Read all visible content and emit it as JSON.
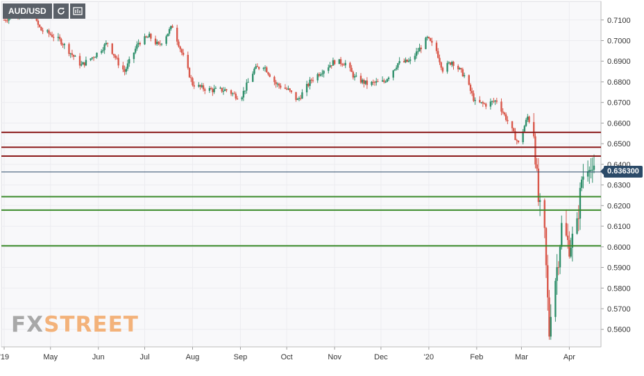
{
  "toolbar": {
    "symbol": "AUD/USD",
    "refresh_icon": "refresh-icon",
    "indicator_icon": "indicator-icon"
  },
  "logo": {
    "fx": "FX",
    "street": "STREET"
  },
  "colors": {
    "bull": "#2f8f6b",
    "bear": "#d9574a",
    "resistance": "#8b1a1a",
    "support": "#3a8a2a",
    "current_line": "#2b4a68",
    "grid": "#ececf0",
    "axis_text": "#333333"
  },
  "chart_data": {
    "type": "candlestick",
    "symbol": "AUD/USD",
    "ylim": [
      0.5515,
      0.719
    ],
    "y_ticks": [
      "0.7100",
      "0.7000",
      "0.6900",
      "0.6800",
      "0.6700",
      "0.6600",
      "0.6500",
      "0.6400",
      "0.6300",
      "0.6200",
      "0.6100",
      "0.6000",
      "0.5900",
      "0.5800",
      "0.5700",
      "0.5600"
    ],
    "x_ticks": [
      {
        "label": "'19",
        "date": "2019-04-01"
      },
      {
        "label": "May",
        "date": "2019-05-01"
      },
      {
        "label": "Jun",
        "date": "2019-06-01"
      },
      {
        "label": "Jul",
        "date": "2019-07-01"
      },
      {
        "label": "Aug",
        "date": "2019-08-01"
      },
      {
        "label": "Sep",
        "date": "2019-09-01"
      },
      {
        "label": "Oct",
        "date": "2019-10-01"
      },
      {
        "label": "Nov",
        "date": "2019-11-01"
      },
      {
        "label": "Dec",
        "date": "2019-12-01"
      },
      {
        "label": "'20",
        "date": "2020-01-01"
      },
      {
        "label": "Feb",
        "date": "2020-02-01"
      },
      {
        "label": "Mar",
        "date": "2020-03-01"
      },
      {
        "label": "Apr",
        "date": "2020-04-01"
      }
    ],
    "date_range": [
      "2019-04-01",
      "2020-04-17"
    ],
    "current_price": {
      "value": 0.6363,
      "label": "0.636300"
    },
    "resistance_levels": [
      0.6555,
      0.6483,
      0.644
    ],
    "support_levels": [
      0.6243,
      0.6178,
      0.6005
    ],
    "close_path": [
      [
        "2019-04-01",
        0.71
      ],
      [
        "2019-04-08",
        0.713
      ],
      [
        "2019-04-17",
        0.7145
      ],
      [
        "2019-04-25",
        0.705
      ],
      [
        "2019-05-01",
        0.703
      ],
      [
        "2019-05-08",
        0.6995
      ],
      [
        "2019-05-14",
        0.694
      ],
      [
        "2019-05-21",
        0.688
      ],
      [
        "2019-05-30",
        0.693
      ],
      [
        "2019-06-07",
        0.699
      ],
      [
        "2019-06-14",
        0.689
      ],
      [
        "2019-06-18",
        0.685
      ],
      [
        "2019-06-27",
        0.699
      ],
      [
        "2019-07-04",
        0.702
      ],
      [
        "2019-07-10",
        0.6975
      ],
      [
        "2019-07-19",
        0.707
      ],
      [
        "2019-07-26",
        0.692
      ],
      [
        "2019-08-01",
        0.679
      ],
      [
        "2019-08-07",
        0.677
      ],
      [
        "2019-08-14",
        0.676
      ],
      [
        "2019-08-23",
        0.676
      ],
      [
        "2019-09-01",
        0.672
      ],
      [
        "2019-09-10",
        0.686
      ],
      [
        "2019-09-16",
        0.688
      ],
      [
        "2019-09-24",
        0.679
      ],
      [
        "2019-10-02",
        0.676
      ],
      [
        "2019-10-08",
        0.671
      ],
      [
        "2019-10-17",
        0.681
      ],
      [
        "2019-10-25",
        0.686
      ],
      [
        "2019-11-01",
        0.69
      ],
      [
        "2019-11-08",
        0.689
      ],
      [
        "2019-11-14",
        0.682
      ],
      [
        "2019-11-22",
        0.679
      ],
      [
        "2019-12-03",
        0.68
      ],
      [
        "2019-12-12",
        0.689
      ],
      [
        "2019-12-20",
        0.69
      ],
      [
        "2019-12-31",
        0.701
      ],
      [
        "2020-01-06",
        0.695
      ],
      [
        "2020-01-10",
        0.686
      ],
      [
        "2020-01-16",
        0.69
      ],
      [
        "2020-01-24",
        0.683
      ],
      [
        "2020-01-31",
        0.67
      ],
      [
        "2020-02-07",
        0.669
      ],
      [
        "2020-02-14",
        0.671
      ],
      [
        "2020-02-21",
        0.661
      ],
      [
        "2020-02-28",
        0.65
      ],
      [
        "2020-03-05",
        0.663
      ],
      [
        "2020-03-09",
        0.656
      ],
      [
        "2020-03-12",
        0.622
      ],
      [
        "2020-03-16",
        0.605
      ],
      [
        "2020-03-19",
        0.558
      ],
      [
        "2020-03-20",
        0.57
      ],
      [
        "2020-03-25",
        0.595
      ],
      [
        "2020-03-27",
        0.61
      ],
      [
        "2020-04-01",
        0.6
      ],
      [
        "2020-04-06",
        0.61
      ],
      [
        "2020-04-09",
        0.633
      ],
      [
        "2020-04-14",
        0.642
      ],
      [
        "2020-04-16",
        0.633
      ],
      [
        "2020-04-17",
        0.6363
      ]
    ]
  }
}
